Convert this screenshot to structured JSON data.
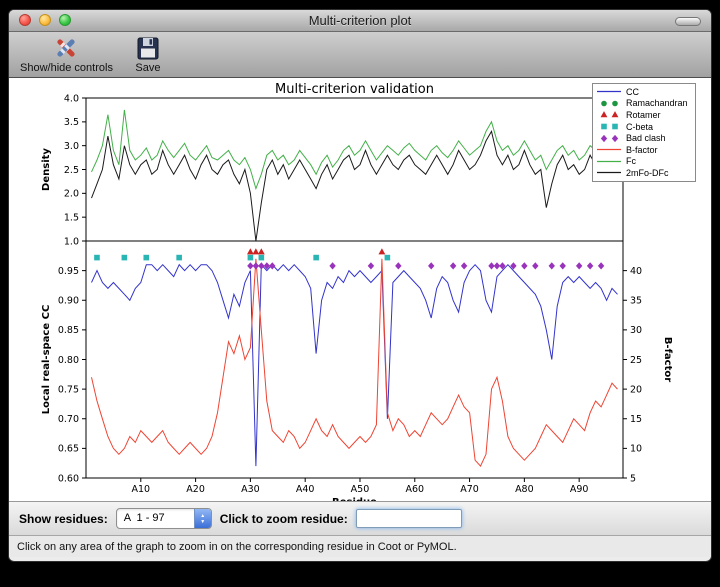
{
  "window": {
    "title": "Multi-criterion plot",
    "toolbar": [
      {
        "id": "show-hide-controls",
        "icon": "crossed-tools-icon",
        "label": "Show/hide controls"
      },
      {
        "id": "save",
        "icon": "floppy-disk-icon",
        "label": "Save"
      }
    ]
  },
  "controls": {
    "show_residues_label": "Show residues:",
    "residue_range_value": "A  1 - 97",
    "zoom_label": "Click to zoom residue:",
    "zoom_input_value": ""
  },
  "status_bar": "Click on any area of the graph to zoom in on the corresponding residue in Coot or PyMOL.",
  "chart_data": {
    "figure_title": "Multi-criterion validation",
    "legend": [
      {
        "label": "CC",
        "type": "line",
        "color": "#3333cc"
      },
      {
        "label": "Ramachandran",
        "type": "circle",
        "color": "#1d9640"
      },
      {
        "label": "Rotamer",
        "type": "triangle",
        "color": "#cc2222"
      },
      {
        "label": "C-beta",
        "type": "square",
        "color": "#2ab5b5"
      },
      {
        "label": "Bad clash",
        "type": "diamond",
        "color": "#9933bb"
      },
      {
        "label": "B-factor",
        "type": "line",
        "color": "#ee4433"
      },
      {
        "label": "Fc",
        "type": "line",
        "color": "#43b049"
      },
      {
        "label": "2mFo-DFc",
        "type": "line",
        "color": "#1a1a1a"
      }
    ],
    "top_plot": {
      "type": "line",
      "ylabel": "Density",
      "ylim": [
        1.0,
        4.0
      ],
      "yticks": [
        1.0,
        1.5,
        2.0,
        2.5,
        3.0,
        3.5,
        4.0
      ],
      "series": [
        {
          "name": "Fc",
          "color": "#43b049",
          "values": [
            2.45,
            2.7,
            3.0,
            3.65,
            2.9,
            2.6,
            3.75,
            2.9,
            2.7,
            2.8,
            2.95,
            2.7,
            2.8,
            3.1,
            2.9,
            2.75,
            2.9,
            3.05,
            2.8,
            2.7,
            2.85,
            3.0,
            2.75,
            2.7,
            2.8,
            2.9,
            2.7,
            2.6,
            2.75,
            2.5,
            2.1,
            2.4,
            2.8,
            2.9,
            2.7,
            2.8,
            2.6,
            2.7,
            2.9,
            2.75,
            2.6,
            2.4,
            2.65,
            2.8,
            2.55,
            2.7,
            2.9,
            3.0,
            2.8,
            2.9,
            3.1,
            2.9,
            2.7,
            2.85,
            3.0,
            2.9,
            2.8,
            2.95,
            3.05,
            2.9,
            2.8,
            2.7,
            2.9,
            3.0,
            2.85,
            2.75,
            2.9,
            3.1,
            2.95,
            2.8,
            2.9,
            3.0,
            3.3,
            3.5,
            3.1,
            2.9,
            3.0,
            2.8,
            2.9,
            3.1,
            2.9,
            2.7,
            2.8,
            2.5,
            2.7,
            2.9,
            3.0,
            2.8,
            2.9,
            2.7,
            2.8,
            3.0,
            2.9,
            3.5,
            3.6,
            2.9,
            2.7
          ]
        },
        {
          "name": "2mFo-DFc",
          "color": "#1a1a1a",
          "values": [
            1.9,
            2.2,
            2.5,
            3.2,
            2.6,
            2.3,
            3.0,
            2.6,
            2.4,
            2.6,
            2.7,
            2.4,
            2.5,
            2.9,
            2.6,
            2.4,
            2.6,
            2.8,
            2.5,
            2.3,
            2.6,
            2.8,
            2.5,
            2.4,
            2.6,
            2.7,
            2.4,
            2.2,
            2.5,
            2.0,
            1.0,
            1.8,
            2.5,
            2.7,
            2.4,
            2.6,
            2.3,
            2.5,
            2.7,
            2.5,
            2.3,
            2.1,
            2.4,
            2.6,
            2.3,
            2.5,
            2.7,
            2.8,
            2.5,
            2.6,
            2.9,
            2.6,
            2.4,
            2.6,
            2.8,
            2.6,
            2.5,
            2.7,
            2.8,
            2.6,
            2.5,
            2.4,
            2.6,
            2.8,
            2.6,
            2.4,
            2.6,
            2.9,
            2.7,
            2.5,
            2.6,
            2.8,
            3.1,
            3.3,
            2.8,
            2.6,
            2.8,
            2.5,
            2.6,
            2.9,
            2.6,
            2.4,
            2.5,
            1.7,
            2.2,
            2.6,
            2.8,
            2.5,
            2.6,
            2.4,
            2.5,
            2.8,
            2.6,
            3.1,
            2.9,
            2.5,
            2.3
          ]
        }
      ]
    },
    "bottom_plot": {
      "type": "line",
      "ylabel_left": "Local real-space CC",
      "ylabel_right": "B-factor",
      "xlabel": "Residue",
      "x_range": [
        0,
        98
      ],
      "ylim_left": [
        0.6,
        1.0
      ],
      "ylim_right": [
        5,
        45
      ],
      "yticks_left": [
        0.6,
        0.65,
        0.7,
        0.75,
        0.8,
        0.85,
        0.9,
        0.95
      ],
      "yticks_right": [
        5,
        10,
        15,
        20,
        25,
        30,
        35,
        40
      ],
      "xtick_values": [
        10,
        20,
        30,
        40,
        50,
        60,
        70,
        80,
        90
      ],
      "xtick_labels": [
        "A10",
        "A20",
        "A30",
        "A40",
        "A50",
        "A60",
        "A70",
        "A80",
        "A90"
      ],
      "series": [
        {
          "name": "CC",
          "axis": "left",
          "color": "#3333cc",
          "values": [
            0.93,
            0.95,
            0.93,
            0.92,
            0.93,
            0.92,
            0.91,
            0.9,
            0.92,
            0.93,
            0.96,
            0.96,
            0.95,
            0.96,
            0.95,
            0.94,
            0.96,
            0.95,
            0.96,
            0.95,
            0.96,
            0.96,
            0.95,
            0.93,
            0.9,
            0.87,
            0.91,
            0.89,
            0.93,
            0.95,
            0.62,
            0.96,
            0.95,
            0.96,
            0.95,
            0.96,
            0.95,
            0.96,
            0.95,
            0.94,
            0.92,
            0.81,
            0.9,
            0.93,
            0.92,
            0.94,
            0.93,
            0.95,
            0.94,
            0.95,
            0.94,
            0.93,
            0.94,
            0.95,
            0.7,
            0.93,
            0.94,
            0.95,
            0.94,
            0.93,
            0.92,
            0.9,
            0.87,
            0.92,
            0.94,
            0.93,
            0.9,
            0.88,
            0.93,
            0.95,
            0.96,
            0.95,
            0.9,
            0.88,
            0.94,
            0.95,
            0.96,
            0.95,
            0.94,
            0.93,
            0.92,
            0.91,
            0.89,
            0.85,
            0.8,
            0.89,
            0.93,
            0.94,
            0.93,
            0.94,
            0.93,
            0.92,
            0.93,
            0.92,
            0.9,
            0.92,
            0.91
          ]
        },
        {
          "name": "B-factor",
          "axis": "right",
          "color": "#ee4433",
          "values": [
            22,
            18,
            15,
            12,
            10,
            9,
            10,
            12,
            11,
            13,
            12,
            11,
            12,
            13,
            11,
            10,
            9,
            10,
            11,
            10,
            9,
            10,
            12,
            16,
            22,
            28,
            26,
            29,
            25,
            27,
            42,
            30,
            18,
            13,
            12,
            11,
            13,
            12,
            10,
            11,
            13,
            15,
            13,
            12,
            14,
            12,
            11,
            10,
            11,
            12,
            11,
            12,
            14,
            42,
            16,
            13,
            15,
            14,
            12,
            13,
            12,
            14,
            16,
            15,
            14,
            15,
            17,
            19,
            17,
            16,
            8,
            7,
            9,
            20,
            22,
            18,
            12,
            10,
            9,
            8,
            9,
            10,
            12,
            14,
            13,
            12,
            11,
            13,
            15,
            14,
            13,
            16,
            18,
            17,
            19,
            21,
            20
          ]
        }
      ],
      "markers": [
        {
          "name": "Rotamer",
          "shape": "triangle",
          "color": "#cc2222",
          "y": 0.982,
          "residues": [
            30,
            31,
            32,
            54
          ]
        },
        {
          "name": "C-beta",
          "shape": "square",
          "color": "#2ab5b5",
          "y": 0.972,
          "residues": [
            2,
            7,
            11,
            17,
            30,
            32,
            42,
            55
          ]
        },
        {
          "name": "Bad clash",
          "shape": "diamond",
          "color": "#9933bb",
          "y": 0.958,
          "residues": [
            30,
            31,
            32,
            33,
            34,
            45,
            52,
            57,
            63,
            67,
            69,
            74,
            75,
            76,
            78,
            80,
            82,
            85,
            87,
            90,
            92,
            94
          ]
        }
      ]
    }
  }
}
